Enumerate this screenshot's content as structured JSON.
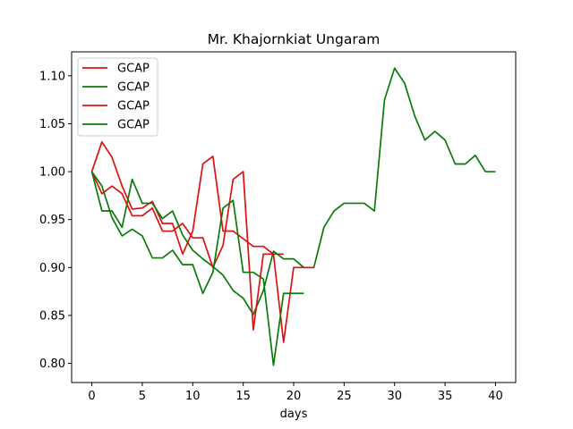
{
  "chart_data": {
    "type": "line",
    "title": "Mr. Khajornkiat Ungaram",
    "xlabel": "days",
    "ylabel": "",
    "xlim": [
      -2,
      42
    ],
    "ylim": [
      0.78,
      1.125
    ],
    "xticks": [
      0,
      5,
      10,
      15,
      20,
      25,
      30,
      35,
      40
    ],
    "yticks": [
      0.8,
      0.85,
      0.9,
      0.95,
      1.0,
      1.05,
      1.1
    ],
    "ytick_labels": [
      "0.80",
      "0.85",
      "0.90",
      "0.95",
      "1.00",
      "1.05",
      "1.10"
    ],
    "grid": false,
    "legend": "upper-left",
    "series": [
      {
        "name": "GCAP",
        "color": "#dd1111",
        "x": [
          0,
          1,
          2,
          3,
          4,
          5,
          6,
          7,
          8,
          9,
          10,
          11,
          12,
          13,
          14,
          15,
          16,
          17,
          18,
          19
        ],
        "y": [
          1.0,
          1.031,
          1.015,
          0.985,
          0.961,
          0.962,
          0.969,
          0.946,
          0.946,
          0.914,
          0.938,
          1.008,
          1.016,
          0.938,
          0.938,
          0.93,
          0.922,
          0.922,
          0.914,
          0.914
        ]
      },
      {
        "name": "GCAP",
        "color": "#0a7a0a",
        "x": [
          0,
          1,
          2,
          3,
          4,
          5,
          6,
          7,
          8,
          9,
          10,
          11,
          12,
          13,
          14,
          15,
          16,
          17,
          18,
          19,
          20,
          21,
          22,
          23,
          24,
          25,
          26,
          27,
          28,
          29,
          30,
          31,
          32,
          33,
          34,
          35,
          36,
          37,
          38,
          39,
          40
        ],
        "y": [
          1.0,
          0.959,
          0.959,
          0.942,
          0.992,
          0.967,
          0.967,
          0.951,
          0.959,
          0.934,
          0.918,
          0.909,
          0.901,
          0.892,
          0.876,
          0.868,
          0.851,
          0.876,
          0.917,
          0.909,
          0.909,
          0.9,
          0.9,
          0.942,
          0.959,
          0.967,
          0.967,
          0.967,
          0.959,
          1.075,
          1.108,
          1.092,
          1.058,
          1.033,
          1.042,
          1.033,
          1.008,
          1.008,
          1.017,
          1.0,
          1.0
        ]
      },
      {
        "name": "GCAP",
        "color": "#dd1111",
        "x": [
          0,
          1,
          2,
          3,
          4,
          5,
          6,
          7,
          8,
          9,
          10,
          11,
          12,
          13,
          14,
          15,
          16,
          17,
          18,
          19,
          20,
          21,
          22
        ],
        "y": [
          1.0,
          0.977,
          0.985,
          0.977,
          0.954,
          0.954,
          0.962,
          0.938,
          0.938,
          0.946,
          0.931,
          0.931,
          0.9,
          0.923,
          0.992,
          1.0,
          0.835,
          0.914,
          0.914,
          0.822,
          0.9,
          0.9,
          0.9
        ]
      },
      {
        "name": "GCAP",
        "color": "#0a7a0a",
        "x": [
          0,
          1,
          2,
          3,
          4,
          5,
          6,
          7,
          8,
          9,
          10,
          11,
          12,
          13,
          14,
          15,
          16,
          17,
          18,
          19,
          20,
          21
        ],
        "y": [
          1.0,
          0.985,
          0.952,
          0.933,
          0.94,
          0.933,
          0.91,
          0.91,
          0.918,
          0.903,
          0.903,
          0.873,
          0.895,
          0.962,
          0.97,
          0.895,
          0.895,
          0.888,
          0.798,
          0.873,
          0.873,
          0.873
        ]
      }
    ]
  }
}
